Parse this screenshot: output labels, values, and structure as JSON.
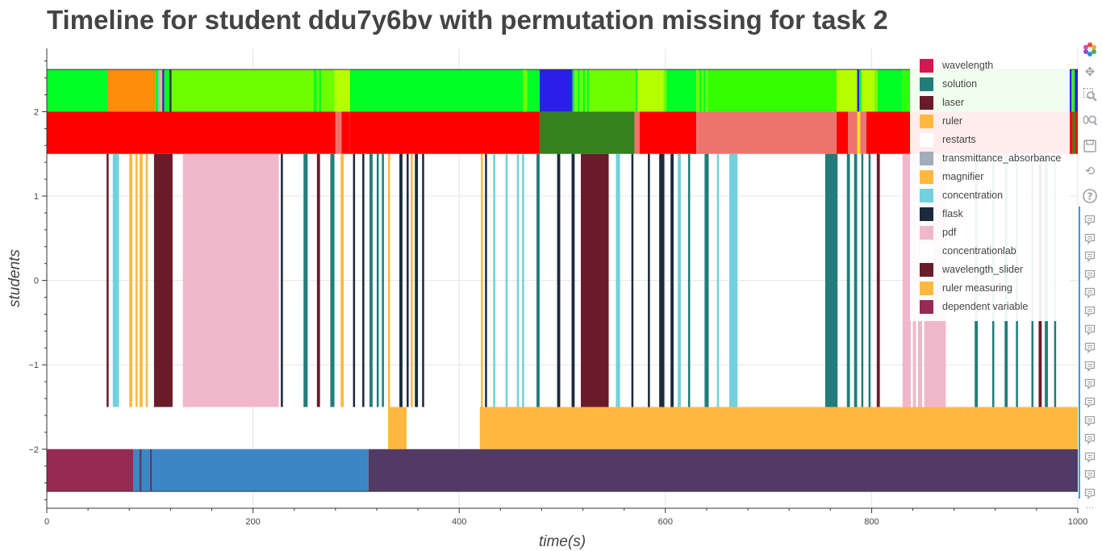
{
  "title": "Timeline for student ddu7y6bv with permutation missing for task 2",
  "toolbar": {
    "icons": [
      "bokeh-logo-icon",
      "pan-icon",
      "box-zoom-icon",
      "wheel-zoom-icon",
      "save-icon",
      "reset-icon",
      "help-icon"
    ],
    "hover_count": 16,
    "more_label": "···"
  },
  "chart_data": {
    "type": "timeline",
    "title": "Timeline for student ddu7y6bv with permutation missing for task 2",
    "xlabel": "time(s)",
    "ylabel": "students",
    "xlim": [
      0,
      1000
    ],
    "ylim": [
      -2.7,
      2.75
    ],
    "xticks": [
      0,
      200,
      400,
      600,
      800,
      1000
    ],
    "yticks": [
      -2,
      -1,
      0,
      1,
      2
    ],
    "ytick_labels": [
      "−2",
      "−1",
      "0",
      "1",
      "2"
    ],
    "grid": true,
    "legend_position": "top-right",
    "legend": [
      {
        "label": "wavelength",
        "color": "#d6174f"
      },
      {
        "label": "solution",
        "color": "#217d7a"
      },
      {
        "label": "laser",
        "color": "#6a1b2a"
      },
      {
        "label": "ruler",
        "color": "#ffb940"
      },
      {
        "label": "restarts",
        "color": "#ffffff"
      },
      {
        "label": "transmittance_absorbance",
        "color": "#a2acbb"
      },
      {
        "label": "magnifier",
        "color": "#ffb940"
      },
      {
        "label": "concentration",
        "color": "#72d1dc"
      },
      {
        "label": "flask",
        "color": "#1b2b3d"
      },
      {
        "label": "pdf",
        "color": "#f0b7cb"
      },
      {
        "label": "concentrationlab",
        "color": "#ffffff"
      },
      {
        "label": "wavelength_slider",
        "color": "#6a1b2a"
      },
      {
        "label": "ruler measuring",
        "color": "#ffb940"
      },
      {
        "label": "dependent variable",
        "color": "#952a52"
      }
    ],
    "rows": [
      {
        "y0": 2,
        "y1": 2.5,
        "segments": [
          [
            0,
            59,
            "#00ff24"
          ],
          [
            59,
            105,
            "#ff8c0a"
          ],
          [
            105,
            108,
            "#00ff24"
          ],
          [
            108,
            110,
            "#72d1dc"
          ],
          [
            110,
            112,
            "#ffb940"
          ],
          [
            112,
            114,
            "#2c1ee8"
          ],
          [
            114,
            119,
            "#00ff24"
          ],
          [
            119,
            121,
            "#1b2b3d"
          ],
          [
            121,
            259,
            "#6dff00"
          ],
          [
            259,
            262,
            "#00ff24"
          ],
          [
            262,
            264,
            "#6dff00"
          ],
          [
            264,
            266,
            "#00ff24"
          ],
          [
            266,
            279,
            "#6dff00"
          ],
          [
            279,
            294,
            "#b6ff00"
          ],
          [
            294,
            462,
            "#00ff24"
          ],
          [
            462,
            466,
            "#6dff00"
          ],
          [
            466,
            478,
            "#00ff24"
          ],
          [
            478,
            510,
            "#2c1ee8"
          ],
          [
            510,
            512,
            "#00ff24"
          ],
          [
            512,
            515,
            "#6dff00"
          ],
          [
            515,
            517,
            "#00ff24"
          ],
          [
            517,
            520,
            "#6dff00"
          ],
          [
            520,
            522,
            "#00ff24"
          ],
          [
            522,
            524,
            "#6dff00"
          ],
          [
            524,
            526,
            "#00ff24"
          ],
          [
            526,
            571,
            "#6dff00"
          ],
          [
            571,
            573,
            "#00ff24"
          ],
          [
            573,
            598,
            "#b6ff00"
          ],
          [
            598,
            601,
            "#6dff00"
          ],
          [
            601,
            630,
            "#00ff24"
          ],
          [
            630,
            633,
            "#6dff00"
          ],
          [
            633,
            635,
            "#00ff24"
          ],
          [
            635,
            637,
            "#6dff00"
          ],
          [
            637,
            639,
            "#00ff24"
          ],
          [
            639,
            641,
            "#6dff00"
          ],
          [
            641,
            766,
            "#33ff00"
          ],
          [
            766,
            786,
            "#b6ff00"
          ],
          [
            786,
            788,
            "#2c1ee8"
          ],
          [
            788,
            790,
            "#00ff24"
          ],
          [
            790,
            803,
            "#b6ff00"
          ],
          [
            803,
            806,
            "#6dff00"
          ],
          [
            806,
            830,
            "#00ff24"
          ],
          [
            830,
            990,
            "#33ff00"
          ],
          [
            990,
            994,
            "#2c1ee8"
          ],
          [
            994,
            997,
            "#33ff00"
          ],
          [
            997,
            1000,
            "#2c1ee8"
          ]
        ]
      },
      {
        "y0": 1.5,
        "y1": 2,
        "segments": [
          [
            0,
            280,
            "#ff0000"
          ],
          [
            280,
            286,
            "#ee736d"
          ],
          [
            286,
            294,
            "#ff0000"
          ],
          [
            294,
            478,
            "#ff0000"
          ],
          [
            478,
            570,
            "#35801f"
          ],
          [
            570,
            575,
            "#ee736d"
          ],
          [
            575,
            630,
            "#ff0000"
          ],
          [
            630,
            766,
            "#ee736d"
          ],
          [
            766,
            777,
            "#ff0000"
          ],
          [
            777,
            786,
            "#ee736d"
          ],
          [
            786,
            789,
            "#ffe600"
          ],
          [
            789,
            795,
            "#ee736d"
          ],
          [
            795,
            995,
            "#ff0000"
          ],
          [
            995,
            998,
            "#35801f"
          ],
          [
            998,
            1000,
            "#ff0000"
          ]
        ]
      },
      {
        "y0": -1.5,
        "y1": 1.5,
        "segments": [
          [
            58,
            60,
            "#6a1b2a"
          ],
          [
            64,
            70,
            "#72d1dc"
          ],
          [
            80,
            83,
            "#ffb940"
          ],
          [
            86,
            88,
            "#ffb940"
          ],
          [
            90,
            93,
            "#ffb940"
          ],
          [
            96,
            98,
            "#ffb940"
          ],
          [
            104,
            122,
            "#6a1b2a"
          ],
          [
            132,
            225,
            "#f0b7cb"
          ],
          [
            227,
            229,
            "#1b2b3d"
          ],
          [
            249,
            253,
            "#217d7a"
          ],
          [
            262,
            265,
            "#6a1b2a"
          ],
          [
            275,
            279,
            "#217d7a"
          ],
          [
            285,
            288,
            "#ffb940"
          ],
          [
            297,
            299,
            "#1b2b3d"
          ],
          [
            306,
            308,
            "#1b2b3d"
          ],
          [
            313,
            316,
            "#217d7a"
          ],
          [
            320,
            322,
            "#217d7a"
          ],
          [
            325,
            327,
            "#217d7a"
          ],
          [
            331,
            333,
            "#ffb940"
          ],
          [
            342,
            345,
            "#1b2b3d"
          ],
          [
            349,
            351,
            "#1b2b3d"
          ],
          [
            353,
            355,
            "#ffb940"
          ],
          [
            357,
            360,
            "#1b2b3d"
          ],
          [
            364,
            366,
            "#1b2b3d"
          ],
          [
            421,
            423,
            "#ffb940"
          ],
          [
            425,
            427,
            "#1b2b3d"
          ],
          [
            433,
            435,
            "#72d1dc"
          ],
          [
            445,
            447,
            "#72d1dc"
          ],
          [
            456,
            458,
            "#72d1dc"
          ],
          [
            461,
            463,
            "#72d1dc"
          ],
          [
            475,
            478,
            "#217d7a"
          ],
          [
            495,
            498,
            "#1b2b3d"
          ],
          [
            509,
            512,
            "#1b2b3d"
          ],
          [
            518,
            545,
            "#6a1b2a"
          ],
          [
            552,
            556,
            "#72d1dc"
          ],
          [
            567,
            569,
            "#1b2b3d"
          ],
          [
            583,
            585,
            "#1b2b3d"
          ],
          [
            594,
            599,
            "#1b2b3d"
          ],
          [
            605,
            608,
            "#1b2b3d"
          ],
          [
            612,
            615,
            "#72d1dc"
          ],
          [
            622,
            624,
            "#217d7a"
          ],
          [
            638,
            642,
            "#217d7a"
          ],
          [
            650,
            652,
            "#72d1dc"
          ],
          [
            662,
            670,
            "#72d1dc"
          ],
          [
            755,
            767,
            "#217d7a"
          ],
          [
            776,
            779,
            "#217d7a"
          ],
          [
            783,
            786,
            "#217d7a"
          ],
          [
            790,
            792,
            "#217d7a"
          ],
          [
            797,
            799,
            "#217d7a"
          ],
          [
            805,
            808,
            "#6a1b2a"
          ],
          [
            830,
            838,
            "#f0b7cb"
          ],
          [
            840,
            843,
            "#f0b7cb"
          ],
          [
            845,
            849,
            "#f0b7cb"
          ],
          [
            851,
            872,
            "#f0b7cb"
          ],
          [
            900,
            903,
            "#217d7a"
          ],
          [
            917,
            919,
            "#217d7a"
          ],
          [
            929,
            932,
            "#217d7a"
          ],
          [
            940,
            942,
            "#217d7a"
          ],
          [
            955,
            957,
            "#217d7a"
          ],
          [
            962,
            965,
            "#6a1b2a"
          ],
          [
            968,
            971,
            "#217d7a"
          ],
          [
            977,
            979,
            "#217d7a"
          ]
        ]
      },
      {
        "y0": -2,
        "y1": -1.5,
        "segments": [
          [
            331,
            349,
            "#ffb940"
          ],
          [
            420,
            1000,
            "#ffb940"
          ]
        ]
      },
      {
        "y0": -2.5,
        "y1": -2,
        "segments": [
          [
            0,
            84,
            "#952a52"
          ],
          [
            84,
            90,
            "#3d86c6"
          ],
          [
            90,
            92,
            "#513b64"
          ],
          [
            92,
            100,
            "#3d86c6"
          ],
          [
            100,
            102,
            "#513b64"
          ],
          [
            102,
            312,
            "#3d86c6"
          ],
          [
            312,
            358,
            "#513b64"
          ],
          [
            358,
            1000,
            "#513b64"
          ]
        ]
      }
    ]
  }
}
